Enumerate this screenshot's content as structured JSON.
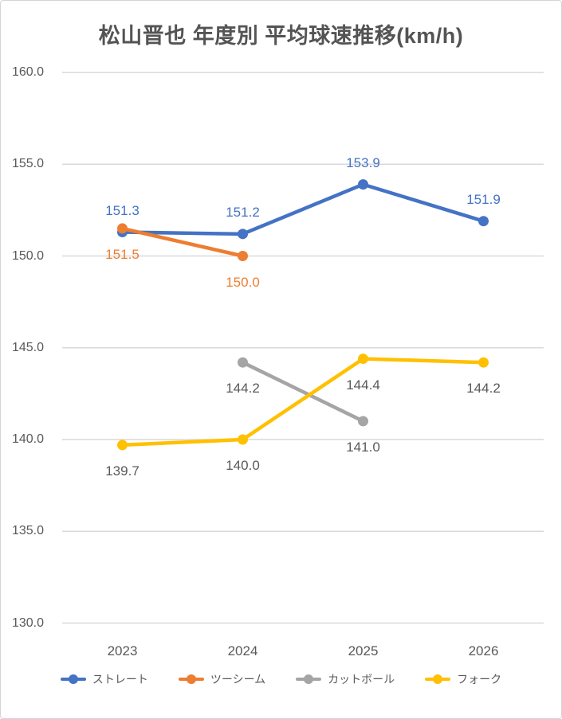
{
  "title": "松山晋也 年度別 平均球速推移(km/h)",
  "chart_data": {
    "type": "line",
    "title": "松山晋也 年度別 平均球速推移(km/h)",
    "categories": [
      "2023",
      "2024",
      "2025",
      "2026"
    ],
    "ylim": [
      130,
      160
    ],
    "ytick_interval": 5,
    "ytick_labels": [
      "160.0",
      "155.0",
      "150.0",
      "145.0",
      "140.0",
      "135.0",
      "130.0"
    ],
    "grid": true,
    "legend_position": "bottom",
    "value_label_decimals": 1,
    "series": [
      {
        "name": "ストレート",
        "color": "#4472C4",
        "label_color": "#4472C4",
        "label_position": "above",
        "values": [
          151.3,
          151.2,
          153.9,
          151.9
        ]
      },
      {
        "name": "ツーシーム",
        "color": "#ED7D31",
        "label_color": "#ED7D31",
        "label_position": "below",
        "values": [
          151.5,
          150.0,
          null,
          null
        ]
      },
      {
        "name": "カットボール",
        "color": "#A5A5A5",
        "label_color": "#595959",
        "label_position": "below",
        "values": [
          null,
          144.2,
          141.0,
          null
        ]
      },
      {
        "name": "フォーク",
        "color": "#FFC000",
        "label_color": "#595959",
        "label_position": "below",
        "values": [
          139.7,
          140.0,
          144.4,
          144.2
        ]
      }
    ]
  },
  "styles": {
    "axis_label_color": "#595959",
    "gridline_color": "#D9D9D9",
    "title_color": "#545454",
    "background": "#FFFFFF",
    "border_color": "#D2D5D9"
  }
}
